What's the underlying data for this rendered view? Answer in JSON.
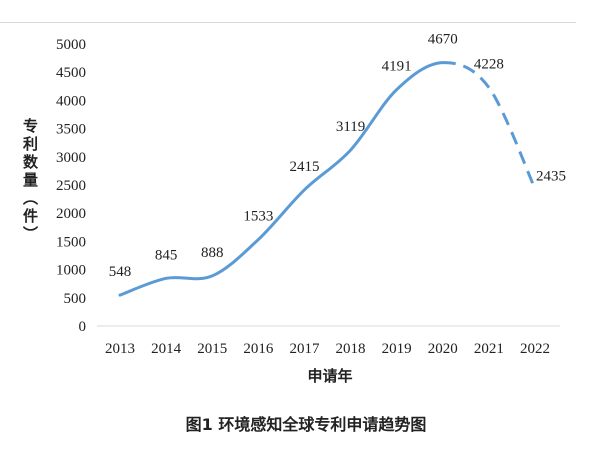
{
  "chart_data": {
    "type": "line",
    "x": [
      "2013",
      "2014",
      "2015",
      "2016",
      "2017",
      "2018",
      "2019",
      "2020",
      "2021",
      "2022"
    ],
    "series": [
      {
        "values": [
          548,
          845,
          888,
          1533,
          2415,
          3119,
          4191,
          4670,
          4228,
          2435
        ],
        "color": "#5B9BD5",
        "line_style": "solid, dashed from 2020 onward",
        "dash_from": "2020",
        "smooth": true,
        "data_labels": true
      }
    ],
    "xlabel": "申请年",
    "ylabel": "专利数量（件）",
    "ylim": [
      0,
      5000
    ],
    "yticks": [
      0,
      500,
      1000,
      1500,
      2000,
      2500,
      3000,
      3500,
      4000,
      4500,
      5000
    ],
    "grid": false,
    "legend": "none"
  },
  "figure": {
    "caption": "图1 环境感知全球专利申请趋势图"
  }
}
